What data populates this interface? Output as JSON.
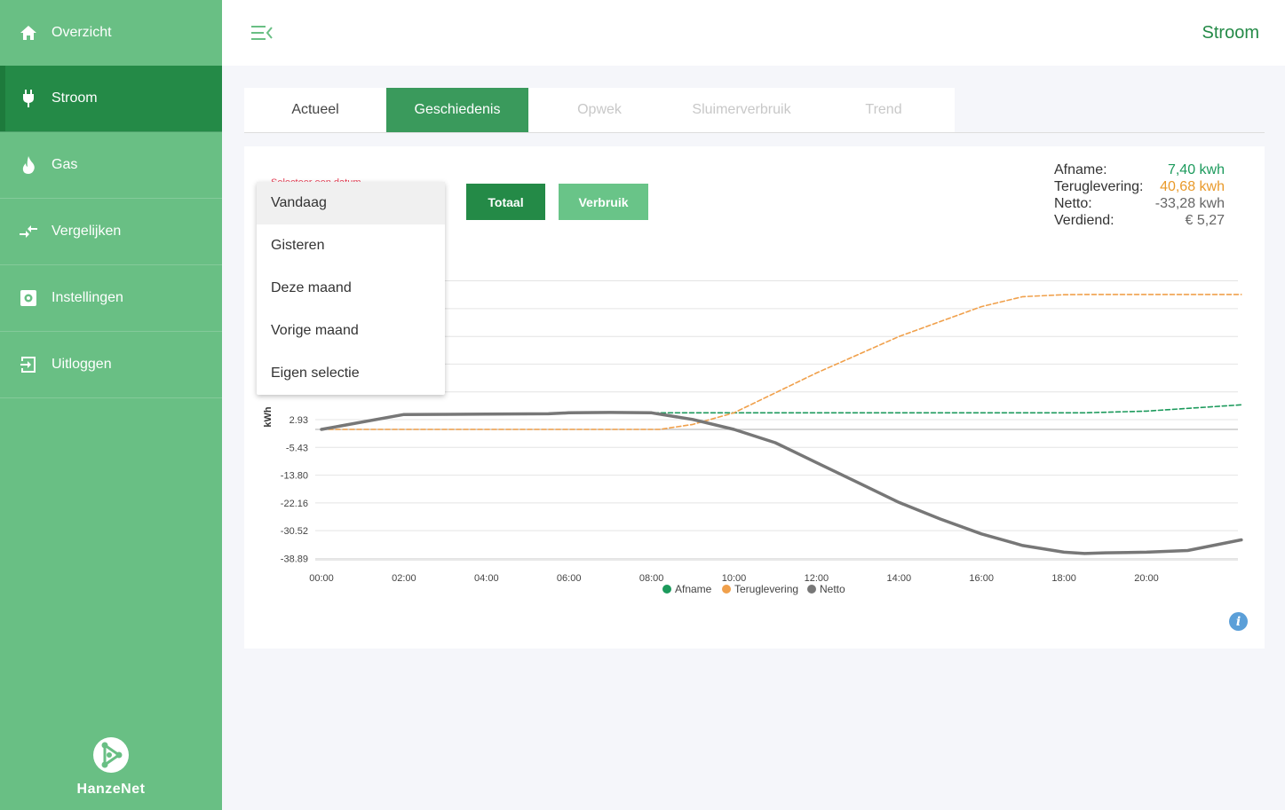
{
  "sidebar": {
    "items": [
      {
        "label": "Overzicht",
        "icon": "home-icon"
      },
      {
        "label": "Stroom",
        "icon": "plug-icon",
        "active": true
      },
      {
        "label": "Gas",
        "icon": "flame-icon"
      },
      {
        "label": "Vergelijken",
        "icon": "compare-arrows-icon"
      },
      {
        "label": "Instellingen",
        "icon": "settings-icon"
      },
      {
        "label": "Uitloggen",
        "icon": "logout-icon"
      }
    ],
    "logo_text": "HanzeNet"
  },
  "header": {
    "title": "Stroom"
  },
  "tabs": [
    {
      "label": "Actueel"
    },
    {
      "label": "Geschiedenis",
      "active": true
    },
    {
      "label": "Opwek",
      "disabled": true
    },
    {
      "label": "Sluimerverbruik",
      "disabled": true
    },
    {
      "label": "Trend",
      "disabled": true
    }
  ],
  "card": {
    "date_label": "Selecteer een datum",
    "btn_totaal": "Totaal",
    "btn_verbruik": "Verbruik"
  },
  "summary": {
    "afname_label": "Afname:",
    "afname_value": "7,40 kwh",
    "teruglevering_label": "Teruglevering:",
    "teruglevering_value": "40,68 kwh",
    "netto_label": "Netto:",
    "netto_value": "-33,28 kwh",
    "verdiend_label": "Verdiend:",
    "verdiend_value": "€ 5,27"
  },
  "dropdown": {
    "options": [
      "Vandaag",
      "Gisteren",
      "Deze maand",
      "Vorige maand",
      "Eigen selectie"
    ],
    "highlighted": "Vandaag"
  },
  "colors": {
    "primary": "#248a47",
    "sidebar": "#69bf84",
    "afname": "#1c9a5c",
    "teruglevering": "#f0a04b",
    "netto": "#777777"
  },
  "chart_data": {
    "type": "line",
    "ylabel": "kWh",
    "yticks": [
      "2.93",
      "-5.43",
      "-13.80",
      "-22.16",
      "-30.52",
      "-38.89"
    ],
    "ytick_values": [
      2.93,
      -5.43,
      -13.8,
      -22.16,
      -30.52,
      -38.89
    ],
    "xticks": [
      "00:00",
      "02:00",
      "04:00",
      "06:00",
      "08:00",
      "10:00",
      "12:00",
      "14:00",
      "16:00",
      "18:00",
      "20:00"
    ],
    "x_hours": [
      0,
      2,
      4,
      6,
      8,
      10,
      12,
      14,
      16,
      18,
      20
    ],
    "series": [
      {
        "name": "Afname",
        "color": "#1c9a5c",
        "dashed": true,
        "x": [
          0,
          2,
          4,
          5.5,
          6,
          8,
          10,
          12,
          14,
          16,
          18.5,
          20,
          22.3
        ],
        "y": [
          0,
          4.5,
          4.6,
          4.7,
          5.0,
          5.0,
          5.0,
          5.0,
          5.0,
          5.0,
          5.0,
          5.5,
          7.4
        ]
      },
      {
        "name": "Teruglevering",
        "color": "#f0a04b",
        "dashed": true,
        "x": [
          0,
          2,
          4,
          6,
          8.2,
          9,
          10,
          12,
          14,
          16,
          17,
          18,
          18.5,
          20,
          22.3
        ],
        "y": [
          0,
          0,
          0,
          0,
          0,
          1.5,
          5,
          17,
          28,
          37,
          40,
          40.6,
          40.68,
          40.68,
          40.68
        ]
      },
      {
        "name": "Netto",
        "color": "#777777",
        "dashed": false,
        "x": [
          0,
          2,
          4,
          5.5,
          6,
          7,
          8,
          9,
          10,
          11,
          12,
          13,
          14,
          15,
          16,
          17,
          18,
          18.5,
          19,
          20,
          21,
          22.3
        ],
        "y": [
          0,
          4.5,
          4.6,
          4.7,
          5.0,
          5.1,
          5.0,
          3.0,
          0,
          -4,
          -10,
          -16,
          -22,
          -27,
          -31.5,
          -35,
          -37,
          -37.4,
          -37.2,
          -37,
          -36.5,
          -33.28
        ]
      }
    ]
  }
}
